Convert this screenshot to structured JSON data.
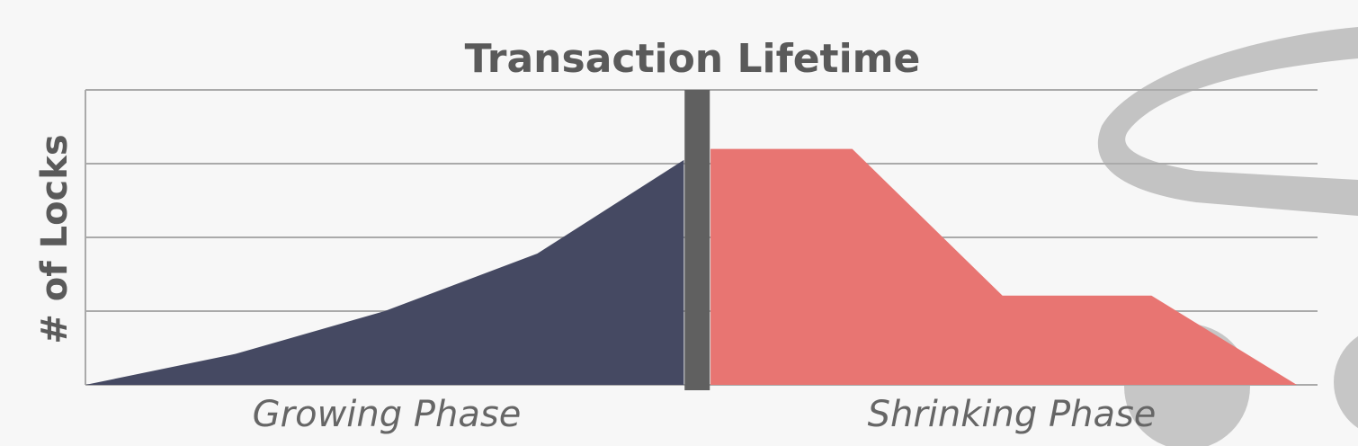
{
  "colors": {
    "background": "#f7f7f7",
    "growing": "#454962",
    "shrinking": "#e87572",
    "lock_point": "#606060",
    "grid": "#aaaaaa",
    "text": "#5a5a5a",
    "phase_text": "#666666",
    "watermark": "#bdbdbd"
  },
  "chart_data": {
    "type": "area",
    "title": "Transaction Lifetime",
    "ylabel": "# of Locks",
    "xlabel": "",
    "grid": true,
    "ylim": [
      0,
      4
    ],
    "xlim": [
      0,
      100
    ],
    "series": [
      {
        "name": "",
        "phase": "growing",
        "x": [
          0,
          12.4,
          24.7,
          37.3,
          49.4
        ],
        "y": [
          0,
          0.42,
          1.0,
          1.78,
          3.05
        ]
      },
      {
        "name": "",
        "phase": "shrinking",
        "x": [
          51.6,
          63.3,
          75.7,
          88.0,
          100
        ],
        "y": [
          3.2,
          3.2,
          1.21,
          1.21,
          0
        ]
      }
    ],
    "divider_x": 50.5,
    "phase_labels": [
      "Growing Phase",
      "Shrinking Phase"
    ]
  }
}
